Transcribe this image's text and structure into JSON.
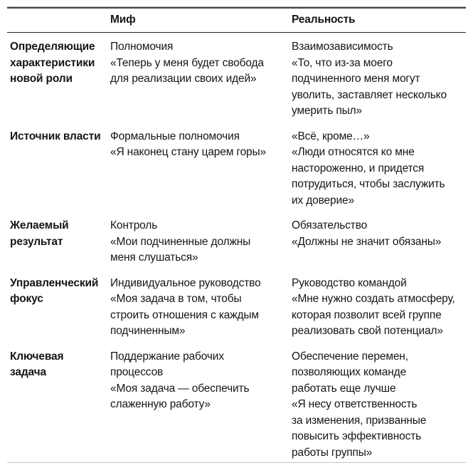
{
  "table": {
    "header": {
      "col1": "",
      "myth": "Миф",
      "reality": "Реальность"
    },
    "rows": [
      {
        "label": "Определяющие\nхарактеристики\nновой роли",
        "myth": "Полномочия\n«Теперь у меня будет свобода\nдля реализации своих идей»",
        "reality": "Взаимозависимость\n«То, что из-за моего\nподчиненного меня могут\nуволить, заставляет несколько\nумерить пыл»"
      },
      {
        "label": "Источник власти",
        "myth": "Формальные полномочия\n«Я наконец стану царем горы»",
        "reality": "«Всё, кроме…»\n«Люди относятся ко мне\nнастороженно, и придется\nпотрудиться, чтобы заслужить\nих доверие»"
      },
      {
        "label": "Желаемый\nрезультат",
        "myth": "Контроль\n«Мои подчиненные должны\nменя слушаться»",
        "reality": "Обязательство\n«Должны не значит обязаны»"
      },
      {
        "label": "Управленческий\nфокус",
        "myth": "Индивидуальное руководство\n«Моя задача в том, чтобы\nстроить отношения с каждым\nподчиненным»",
        "reality": "Руководство командой\n«Мне нужно создать атмосферу,\nкоторая позволит всей группе\nреализовать свой потенциал»"
      },
      {
        "label": "Ключевая\nзадача",
        "myth": "Поддержание рабочих\nпроцессов\n«Моя задача — обеспечить\nслаженную работу»",
        "reality": "Обеспечение перемен,\nпозволяющих команде\nработать еще лучше\n«Я несу ответственность\nза изменения, призванные\nповысить эффективность\nработы группы»"
      }
    ],
    "colors": {
      "text": "#161616",
      "rule_dark": "#2f2f2f",
      "rule_light": "#b5b5b5",
      "background": "#ffffff"
    }
  }
}
